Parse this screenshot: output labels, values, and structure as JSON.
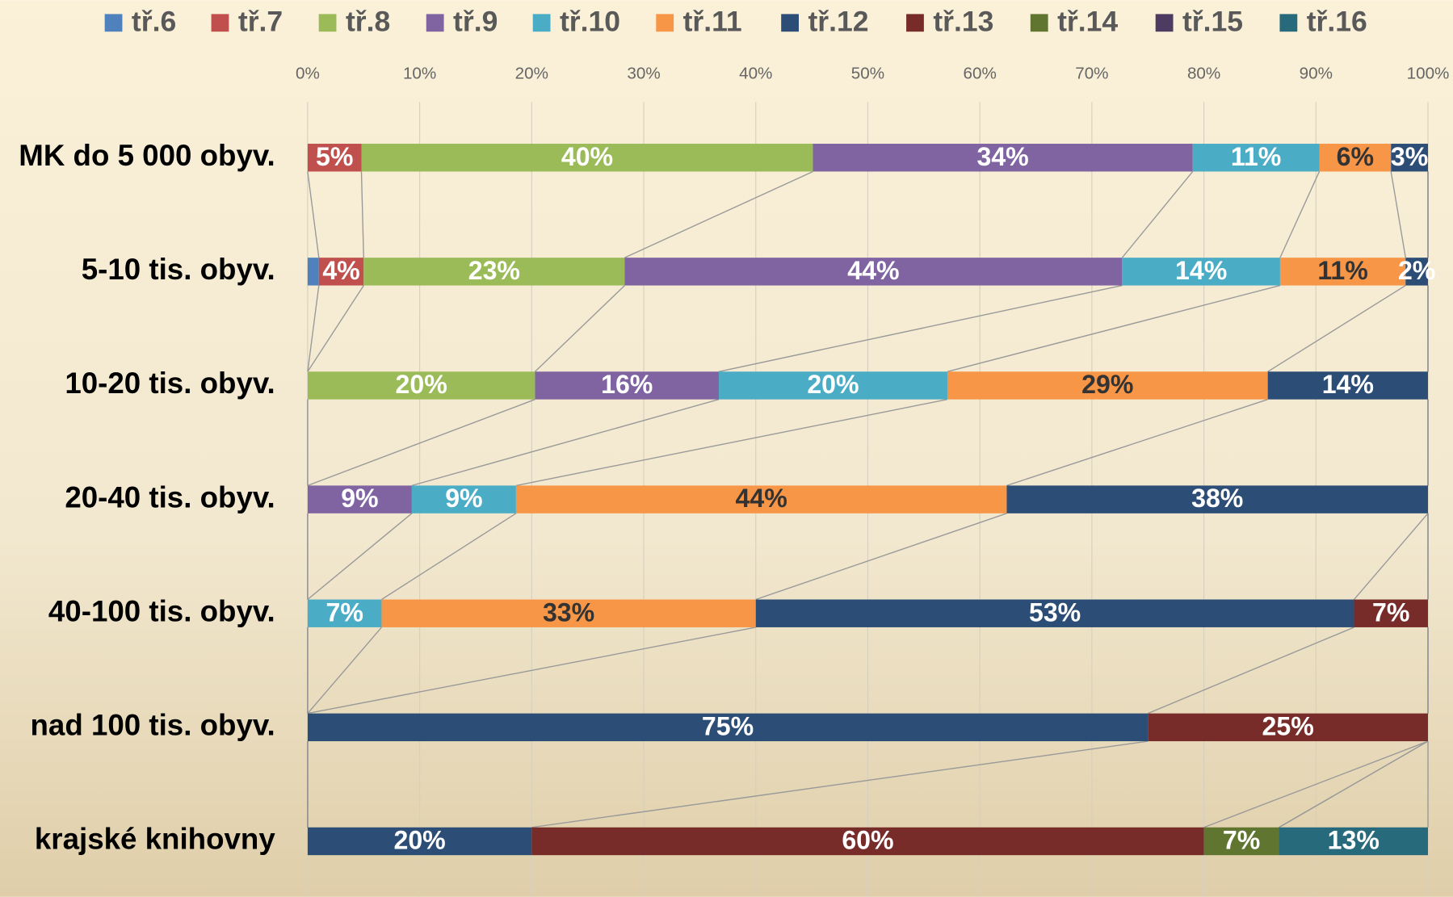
{
  "chart_data": {
    "type": "stacked_hbar",
    "categories": [
      "MK do 5 000 obyv.",
      "5-10 tis. obyv.",
      "10-20 tis.  obyv.",
      "20-40 tis.  obyv.",
      "40-100 tis.  obyv.",
      "nad 100 tis.  obyv.",
      "krajské knihovny"
    ],
    "xlim": [
      0,
      100
    ],
    "xticks": [
      {
        "value": 0,
        "label": "0%"
      },
      {
        "value": 10,
        "label": "10%"
      },
      {
        "value": 20,
        "label": "20%"
      },
      {
        "value": 30,
        "label": "30%"
      },
      {
        "value": 40,
        "label": "40%"
      },
      {
        "value": 50,
        "label": "50%"
      },
      {
        "value": 60,
        "label": "60%"
      },
      {
        "value": 70,
        "label": "70%"
      },
      {
        "value": 80,
        "label": "80%"
      },
      {
        "value": 90,
        "label": "90%"
      },
      {
        "value": 100,
        "label": "100%"
      }
    ],
    "grid": true,
    "legend": "top",
    "series": [
      {
        "name": "tř.6",
        "color": "#4f81bd",
        "label_color": "#ffffff",
        "values": [
          null,
          1.0,
          null,
          null,
          null,
          null,
          null
        ],
        "value_labels": [
          null,
          null,
          null,
          null,
          null,
          null,
          null
        ]
      },
      {
        "name": "tř.7",
        "color": "#c0504d",
        "label_color": "#ffffff",
        "values": [
          4.8,
          4.0,
          null,
          null,
          null,
          null,
          null
        ],
        "value_labels": [
          "5%",
          "4%",
          null,
          null,
          null,
          null,
          null
        ]
      },
      {
        "name": "tř.8",
        "color": "#9bbb59",
        "label_color": "#ffffff",
        "values": [
          40.3,
          23.3,
          20.3,
          null,
          null,
          null,
          null
        ],
        "value_labels": [
          "40%",
          "23%",
          "20%",
          null,
          null,
          null,
          null
        ]
      },
      {
        "name": "tř.9",
        "color": "#8064a2",
        "label_color": "#ffffff",
        "values": [
          33.9,
          44.4,
          16.4,
          9.3,
          null,
          null,
          null
        ],
        "value_labels": [
          "34%",
          "44%",
          "16%",
          "9%",
          null,
          null,
          null
        ]
      },
      {
        "name": "tř.10",
        "color": "#4bacc6",
        "label_color": "#ffffff",
        "values": [
          11.3,
          14.1,
          20.4,
          9.3,
          6.6,
          null,
          null
        ],
        "value_labels": [
          "11%",
          "14%",
          "20%",
          "9%",
          "7%",
          null,
          null
        ]
      },
      {
        "name": "tř.11",
        "color": "#f79646",
        "label_color": "#333333",
        "values": [
          6.4,
          11.2,
          28.6,
          43.8,
          33.4,
          null,
          null
        ],
        "value_labels": [
          "6%",
          "11%",
          "29%",
          "44%",
          "33%",
          null,
          null
        ]
      },
      {
        "name": "tř.12",
        "color": "#2c4d75",
        "label_color": "#ffffff",
        "values": [
          3.3,
          2.0,
          14.3,
          37.6,
          53.4,
          75,
          20
        ],
        "value_labels": [
          "3%",
          "2%",
          "14%",
          "38%",
          "53%",
          "75%",
          "20%"
        ]
      },
      {
        "name": "tř.13",
        "color": "#772c2a",
        "label_color": "#ffffff",
        "values": [
          null,
          null,
          null,
          null,
          6.6,
          25,
          60
        ],
        "value_labels": [
          null,
          null,
          null,
          null,
          "7%",
          "25%",
          "60%"
        ]
      },
      {
        "name": "tř.14",
        "color": "#5f7530",
        "label_color": "#ffffff",
        "values": [
          null,
          null,
          null,
          null,
          null,
          null,
          6.7
        ],
        "value_labels": [
          null,
          null,
          null,
          null,
          null,
          null,
          "7%"
        ]
      },
      {
        "name": "tř.15",
        "color": "#4d3b62",
        "label_color": "#ffffff",
        "values": [
          null,
          null,
          null,
          null,
          null,
          null,
          null
        ],
        "value_labels": [
          null,
          null,
          null,
          null,
          null,
          null,
          null
        ]
      },
      {
        "name": "tř.16",
        "color": "#276a7c",
        "label_color": "#ffffff",
        "values": [
          null,
          null,
          null,
          null,
          null,
          null,
          13.3
        ],
        "value_labels": [
          null,
          null,
          null,
          null,
          null,
          null,
          "13%"
        ]
      }
    ]
  }
}
